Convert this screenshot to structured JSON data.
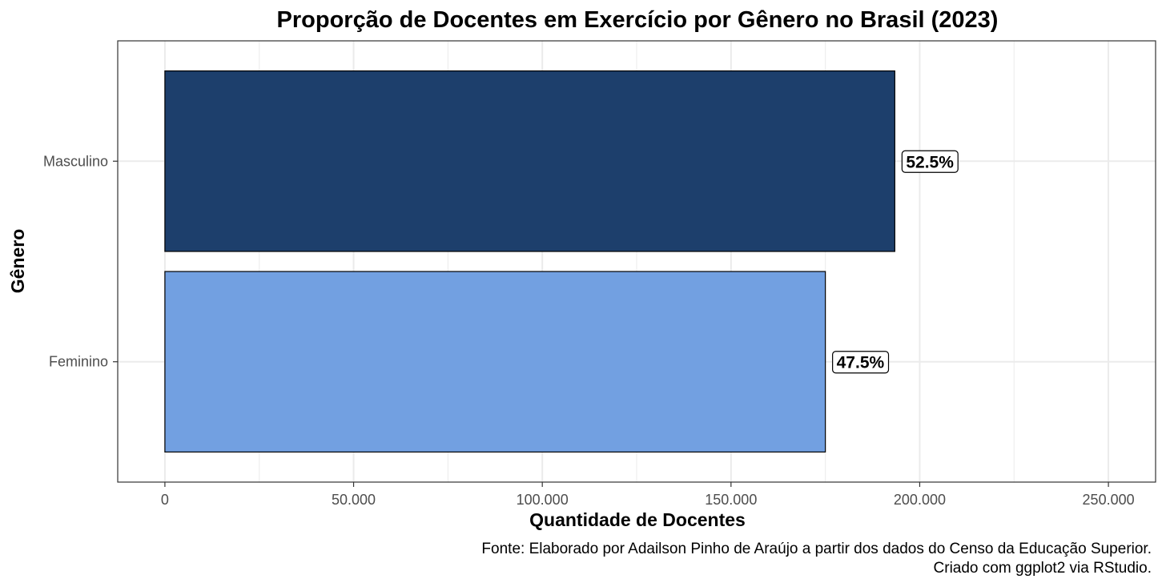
{
  "chart_data": {
    "type": "bar",
    "orientation": "horizontal",
    "title": "Proporção de Docentes em Exercício por Gênero no Brasil (2023)",
    "xlabel": "Quantidade de Docentes",
    "ylabel": "Gênero",
    "categories": [
      "Masculino",
      "Feminino"
    ],
    "values": [
      193400,
      175000
    ],
    "labels": [
      "52.5%",
      "47.5%"
    ],
    "colors": [
      "#1d3f6c",
      "#72a0e1"
    ],
    "bar_edge_color": "#000000",
    "xlim": [
      -12500,
      262500
    ],
    "xticks": [
      0,
      50000,
      100000,
      150000,
      200000,
      250000
    ],
    "xtick_labels": [
      "0",
      "50.000",
      "100.000",
      "150.000",
      "200.000",
      "250.000"
    ],
    "grid": true,
    "legend": "none",
    "caption": [
      "Fonte: Elaborado por Adailson Pinho de Araújo a partir dos dados do Censo da Educação Superior.",
      "Criado com ggplot2 via RStudio."
    ]
  }
}
